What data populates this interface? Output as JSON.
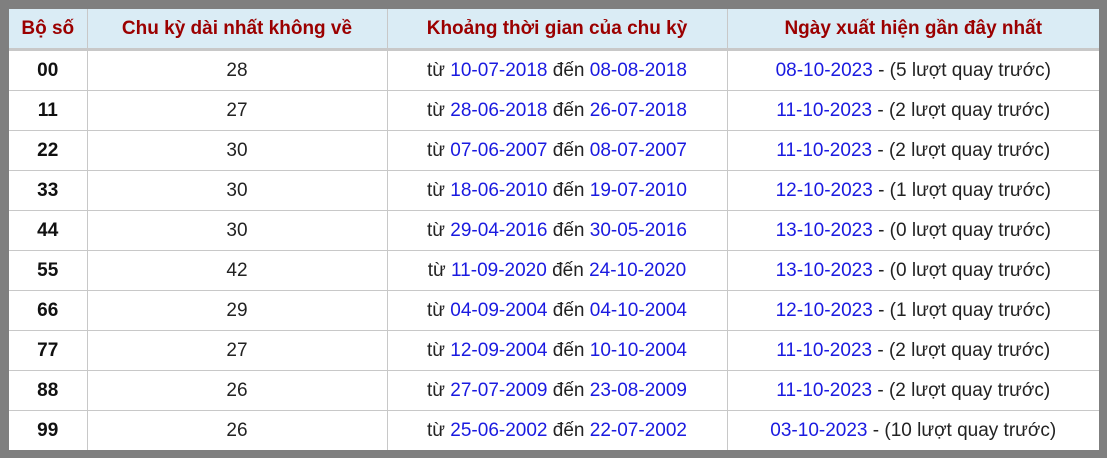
{
  "headers": [
    "Bộ số",
    "Chu kỳ dài nhất không về",
    "Khoảng thời gian của chu kỳ",
    "Ngày xuất hiện gần đây nhất"
  ],
  "labels": {
    "from": "từ",
    "to": "đến",
    "sep": " - ",
    "prefix": "(",
    "suffix": " lượt quay trước)"
  },
  "rows": [
    {
      "pair": "00",
      "cycle": "28",
      "start": "10-07-2018",
      "end": "08-08-2018",
      "last": "08-10-2023",
      "ago": "5"
    },
    {
      "pair": "11",
      "cycle": "27",
      "start": "28-06-2018",
      "end": "26-07-2018",
      "last": "11-10-2023",
      "ago": "2"
    },
    {
      "pair": "22",
      "cycle": "30",
      "start": "07-06-2007",
      "end": "08-07-2007",
      "last": "11-10-2023",
      "ago": "2"
    },
    {
      "pair": "33",
      "cycle": "30",
      "start": "18-06-2010",
      "end": "19-07-2010",
      "last": "12-10-2023",
      "ago": "1"
    },
    {
      "pair": "44",
      "cycle": "30",
      "start": "29-04-2016",
      "end": "30-05-2016",
      "last": "13-10-2023",
      "ago": "0"
    },
    {
      "pair": "55",
      "cycle": "42",
      "start": "11-09-2020",
      "end": "24-10-2020",
      "last": "13-10-2023",
      "ago": "0"
    },
    {
      "pair": "66",
      "cycle": "29",
      "start": "04-09-2004",
      "end": "04-10-2004",
      "last": "12-10-2023",
      "ago": "1"
    },
    {
      "pair": "77",
      "cycle": "27",
      "start": "12-09-2004",
      "end": "10-10-2004",
      "last": "11-10-2023",
      "ago": "2"
    },
    {
      "pair": "88",
      "cycle": "26",
      "start": "27-07-2009",
      "end": "23-08-2009",
      "last": "11-10-2023",
      "ago": "2"
    },
    {
      "pair": "99",
      "cycle": "26",
      "start": "25-06-2002",
      "end": "22-07-2002",
      "last": "03-10-2023",
      "ago": "10"
    }
  ],
  "colors": {
    "header_bg": "#daecf5",
    "header_text": "#9b0000",
    "date": "#1a1ae0",
    "frame": "#7f7f7f"
  }
}
